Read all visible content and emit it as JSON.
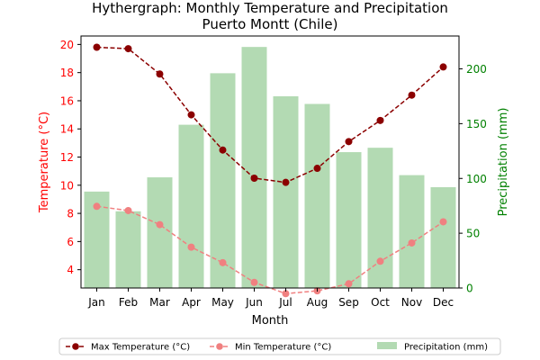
{
  "chart_data": {
    "type": "bar+line",
    "title": "Hythergraph: Monthly Temperature and Precipitation",
    "subtitle": "Puerto Montt (Chile)",
    "xlabel": "Month",
    "ylabel_left": "Temperature (°C)",
    "ylabel_right": "Precipitation (mm)",
    "categories": [
      "Jan",
      "Feb",
      "Mar",
      "Apr",
      "May",
      "Jun",
      "Jul",
      "Aug",
      "Sep",
      "Oct",
      "Nov",
      "Dec"
    ],
    "ylim_left": [
      2.7,
      20.6
    ],
    "yticks_left": [
      4,
      6,
      8,
      10,
      12,
      14,
      16,
      18,
      20
    ],
    "ylim_right": [
      0,
      230
    ],
    "yticks_right": [
      0,
      50,
      100,
      150,
      200
    ],
    "series": [
      {
        "name": "Max Temperature (°C)",
        "type": "line",
        "axis": "left",
        "color": "#8b0000",
        "dashed": true,
        "values": [
          19.8,
          19.7,
          17.9,
          15.0,
          12.5,
          10.5,
          10.2,
          11.2,
          13.1,
          14.6,
          16.4,
          18.4
        ]
      },
      {
        "name": "Min Temperature (°C)",
        "type": "line",
        "axis": "left",
        "color": "#f08080",
        "dashed": true,
        "values": [
          8.5,
          8.2,
          7.2,
          5.6,
          4.5,
          3.1,
          2.3,
          2.5,
          3.0,
          4.6,
          5.9,
          7.4
        ]
      },
      {
        "name": "Precipitation (mm)",
        "type": "bar",
        "axis": "right",
        "color": "#b3dab3",
        "values": [
          88,
          70,
          101,
          149,
          196,
          220,
          175,
          168,
          124,
          128,
          103,
          92
        ]
      }
    ],
    "legend_position": "bottom-center",
    "left_axis_color": "#ff0000",
    "right_axis_color": "#008000"
  }
}
